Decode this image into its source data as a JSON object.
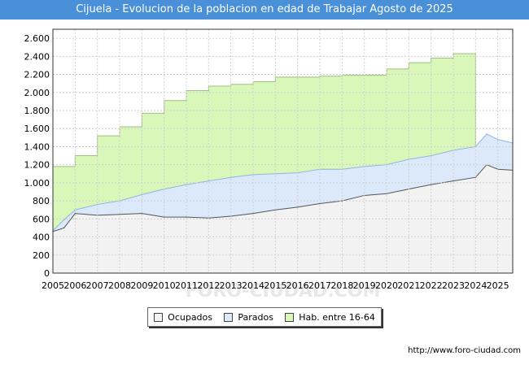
{
  "header": {
    "title": "Cijuela - Evolucion de la poblacion en edad de Trabajar Agosto de 2025"
  },
  "footer": {
    "url": "http://www.foro-ciudad.com"
  },
  "watermark": {
    "text": "FORO-CIUDAD.COM"
  },
  "colors": {
    "title_bg": "#4a90d9",
    "hab_fill": "#d9f7b8",
    "hab_line": "#9fbf7f",
    "parados_fill": "#dbe9fa",
    "parados_line": "#8fb4e3",
    "ocupados_fill": "#f2f2f2",
    "ocupados_line": "#555555",
    "grid": "#d0d0d0"
  },
  "chart_data": {
    "type": "area",
    "title": "Cijuela - Evolucion de la poblacion en edad de Trabajar Agosto de 2025",
    "xlabel": "",
    "ylabel": "",
    "xlim": [
      2005,
      2025.67
    ],
    "ylim": [
      0,
      2700
    ],
    "yticks": [
      0,
      200,
      400,
      600,
      800,
      1000,
      1200,
      1400,
      1600,
      1800,
      2000,
      2200,
      2400,
      2600
    ],
    "ytick_labels": [
      "0",
      "200",
      "400",
      "600",
      "800",
      "1.000",
      "1.200",
      "1.400",
      "1.600",
      "1.800",
      "2.000",
      "2.200",
      "2.400",
      "2.600"
    ],
    "xtick_labels": [
      "2005",
      "2006",
      "2007",
      "2008",
      "2009",
      "2010",
      "2011",
      "2012",
      "2013",
      "2014",
      "2015",
      "2016",
      "2017",
      "2018",
      "2019",
      "2020",
      "2021",
      "2022",
      "2023",
      "2024",
      "2025"
    ],
    "grid": true,
    "legend": [
      "Ocupados",
      "Parados",
      "Hab. entre 16-64"
    ],
    "legend_position": "bottom-center",
    "series": [
      {
        "name": "Hab. entre 16-64",
        "x": [
          2005,
          2006,
          2007,
          2008,
          2009,
          2010,
          2011,
          2012,
          2013,
          2014,
          2015,
          2016,
          2017,
          2018,
          2019,
          2020,
          2021,
          2022,
          2023,
          2024
        ],
        "values": [
          1180,
          1300,
          1520,
          1620,
          1770,
          1910,
          2020,
          2070,
          2090,
          2120,
          2170,
          2170,
          2180,
          2190,
          2190,
          2260,
          2330,
          2380,
          2430,
          0
        ]
      },
      {
        "name": "Parados",
        "x": [
          2005,
          2005.5,
          2006,
          2007,
          2008,
          2009,
          2010,
          2011,
          2012,
          2013,
          2014,
          2015,
          2016,
          2017,
          2018,
          2019,
          2020,
          2021,
          2022,
          2023,
          2024,
          2024.5,
          2025,
          2025.67
        ],
        "values": [
          470,
          590,
          700,
          760,
          800,
          870,
          930,
          980,
          1020,
          1060,
          1090,
          1100,
          1110,
          1150,
          1150,
          1180,
          1200,
          1260,
          1300,
          1360,
          1400,
          1540,
          1480,
          1440
        ]
      },
      {
        "name": "Ocupados",
        "x": [
          2005,
          2005.5,
          2006,
          2007,
          2008,
          2009,
          2010,
          2011,
          2012,
          2013,
          2014,
          2015,
          2016,
          2017,
          2018,
          2019,
          2020,
          2021,
          2022,
          2023,
          2024,
          2024.5,
          2025,
          2025.67
        ],
        "values": [
          460,
          500,
          660,
          640,
          650,
          660,
          620,
          620,
          610,
          630,
          660,
          700,
          730,
          770,
          800,
          860,
          880,
          930,
          980,
          1020,
          1060,
          1200,
          1150,
          1140
        ]
      }
    ]
  }
}
